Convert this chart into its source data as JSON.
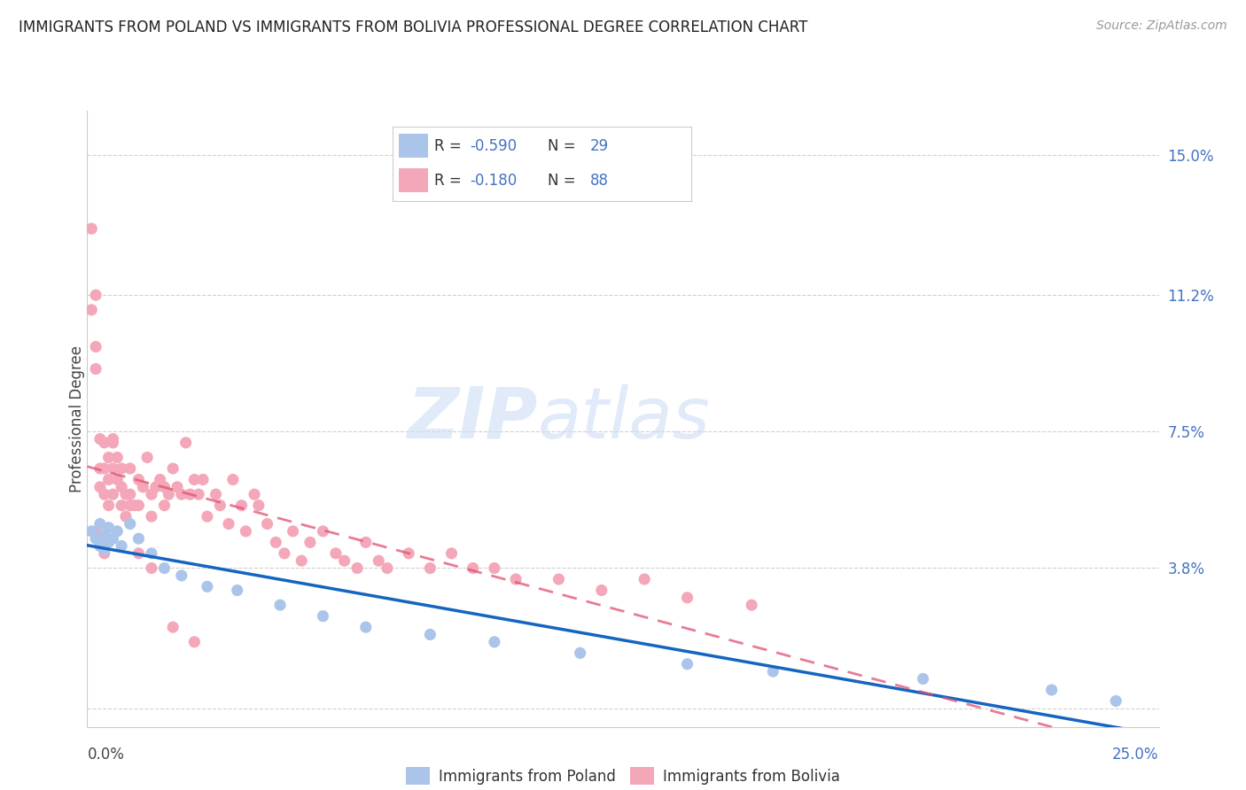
{
  "title": "IMMIGRANTS FROM POLAND VS IMMIGRANTS FROM BOLIVIA PROFESSIONAL DEGREE CORRELATION CHART",
  "source": "Source: ZipAtlas.com",
  "ylabel": "Professional Degree",
  "yticks": [
    0.0,
    0.038,
    0.075,
    0.112,
    0.15
  ],
  "ytick_labels": [
    "",
    "3.8%",
    "7.5%",
    "11.2%",
    "15.0%"
  ],
  "xlim": [
    0.0,
    0.25
  ],
  "ylim": [
    -0.005,
    0.162
  ],
  "legend_R1": "-0.590",
  "legend_N1": "29",
  "legend_R2": "-0.180",
  "legend_N2": "88",
  "color_poland": "#aac4ea",
  "color_bolivia": "#f4a7b9",
  "color_line_poland": "#1565c0",
  "color_line_bolivia": "#e05070",
  "watermark_zip": "ZIP",
  "watermark_atlas": "atlas",
  "poland_x": [
    0.001,
    0.002,
    0.003,
    0.003,
    0.004,
    0.004,
    0.005,
    0.005,
    0.006,
    0.007,
    0.008,
    0.01,
    0.012,
    0.015,
    0.018,
    0.022,
    0.028,
    0.035,
    0.045,
    0.055,
    0.065,
    0.08,
    0.095,
    0.115,
    0.14,
    0.16,
    0.195,
    0.225,
    0.24
  ],
  "poland_y": [
    0.048,
    0.046,
    0.05,
    0.044,
    0.047,
    0.043,
    0.049,
    0.045,
    0.046,
    0.048,
    0.044,
    0.05,
    0.046,
    0.042,
    0.038,
    0.036,
    0.033,
    0.032,
    0.028,
    0.025,
    0.022,
    0.02,
    0.018,
    0.015,
    0.012,
    0.01,
    0.008,
    0.005,
    0.002
  ],
  "bolivia_x": [
    0.001,
    0.001,
    0.002,
    0.002,
    0.002,
    0.003,
    0.003,
    0.003,
    0.004,
    0.004,
    0.004,
    0.005,
    0.005,
    0.005,
    0.006,
    0.006,
    0.006,
    0.007,
    0.007,
    0.008,
    0.008,
    0.009,
    0.009,
    0.01,
    0.01,
    0.011,
    0.012,
    0.012,
    0.013,
    0.014,
    0.015,
    0.015,
    0.016,
    0.017,
    0.018,
    0.018,
    0.019,
    0.02,
    0.021,
    0.022,
    0.023,
    0.024,
    0.025,
    0.026,
    0.027,
    0.028,
    0.03,
    0.031,
    0.033,
    0.034,
    0.036,
    0.037,
    0.039,
    0.04,
    0.042,
    0.044,
    0.046,
    0.048,
    0.05,
    0.052,
    0.055,
    0.058,
    0.06,
    0.063,
    0.065,
    0.068,
    0.07,
    0.075,
    0.08,
    0.085,
    0.09,
    0.095,
    0.1,
    0.11,
    0.12,
    0.13,
    0.14,
    0.155,
    0.002,
    0.003,
    0.004,
    0.006,
    0.008,
    0.01,
    0.012,
    0.015,
    0.02,
    0.025
  ],
  "bolivia_y": [
    0.13,
    0.108,
    0.098,
    0.112,
    0.092,
    0.073,
    0.065,
    0.06,
    0.072,
    0.065,
    0.058,
    0.068,
    0.062,
    0.055,
    0.073,
    0.065,
    0.058,
    0.068,
    0.062,
    0.06,
    0.055,
    0.058,
    0.052,
    0.065,
    0.058,
    0.055,
    0.062,
    0.055,
    0.06,
    0.068,
    0.058,
    0.052,
    0.06,
    0.062,
    0.06,
    0.055,
    0.058,
    0.065,
    0.06,
    0.058,
    0.072,
    0.058,
    0.062,
    0.058,
    0.062,
    0.052,
    0.058,
    0.055,
    0.05,
    0.062,
    0.055,
    0.048,
    0.058,
    0.055,
    0.05,
    0.045,
    0.042,
    0.048,
    0.04,
    0.045,
    0.048,
    0.042,
    0.04,
    0.038,
    0.045,
    0.04,
    0.038,
    0.042,
    0.038,
    0.042,
    0.038,
    0.038,
    0.035,
    0.035,
    0.032,
    0.035,
    0.03,
    0.028,
    0.048,
    0.045,
    0.042,
    0.072,
    0.065,
    0.055,
    0.042,
    0.038,
    0.022,
    0.018
  ]
}
